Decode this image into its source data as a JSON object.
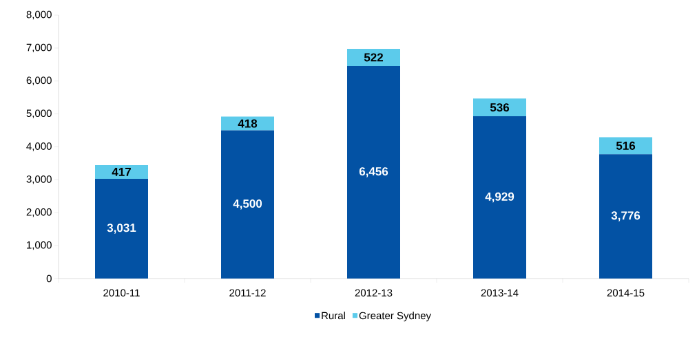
{
  "chart_data": {
    "type": "bar",
    "stacked": true,
    "categories": [
      "2010-11",
      "2011-12",
      "2012-13",
      "2013-14",
      "2014-15"
    ],
    "series": [
      {
        "name": "Rural",
        "color": "#0352a4",
        "values": [
          3031,
          4500,
          6456,
          4929,
          3776
        ],
        "value_labels": [
          "3,031",
          "4,500",
          "6,456",
          "4,929",
          "3,776"
        ]
      },
      {
        "name": "Greater Sydney",
        "color": "#5ccbeb",
        "values": [
          417,
          418,
          522,
          536,
          516
        ],
        "value_labels": [
          "417",
          "418",
          "522",
          "536",
          "516"
        ]
      }
    ],
    "ylim": [
      0,
      8000
    ],
    "yticks": [
      0,
      {
        "value": 1000,
        "label": "1,000"
      },
      {
        "value": 2000,
        "label": "2,000"
      },
      {
        "value": 3000,
        "label": "3,000"
      },
      {
        "value": 4000,
        "label": "4,000"
      },
      {
        "value": 5000,
        "label": "5,000"
      },
      {
        "value": 6000,
        "label": "6,000"
      },
      {
        "value": 7000,
        "label": "7,000"
      },
      {
        "value": 8000,
        "label": "8,000"
      }
    ],
    "grid": false,
    "legend": "bottom"
  }
}
